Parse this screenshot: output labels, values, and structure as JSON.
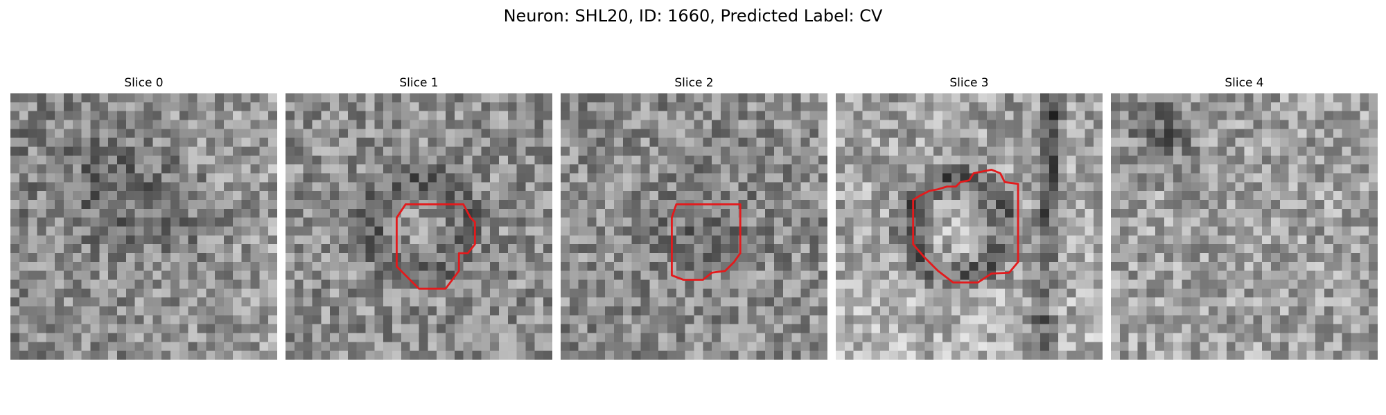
{
  "figure": {
    "title": "Neuron: SHL20, ID: 1660, Predicted Label: CV"
  },
  "panels": [
    {
      "title": "Slice 0",
      "has_contour": false,
      "contour_color": "#e31a1c",
      "seed": 11
    },
    {
      "title": "Slice 1",
      "has_contour": true,
      "contour_color": "#e31a1c",
      "seed": 23
    },
    {
      "title": "Slice 2",
      "has_contour": true,
      "contour_color": "#e31a1c",
      "seed": 37
    },
    {
      "title": "Slice 3",
      "has_contour": true,
      "contour_color": "#e31a1c",
      "seed": 41
    },
    {
      "title": "Slice 4",
      "has_contour": false,
      "contour_color": "#e31a1c",
      "seed": 59
    }
  ],
  "colors": {
    "background": "#ffffff",
    "contour": "#e31a1c",
    "colormap": "gray"
  }
}
